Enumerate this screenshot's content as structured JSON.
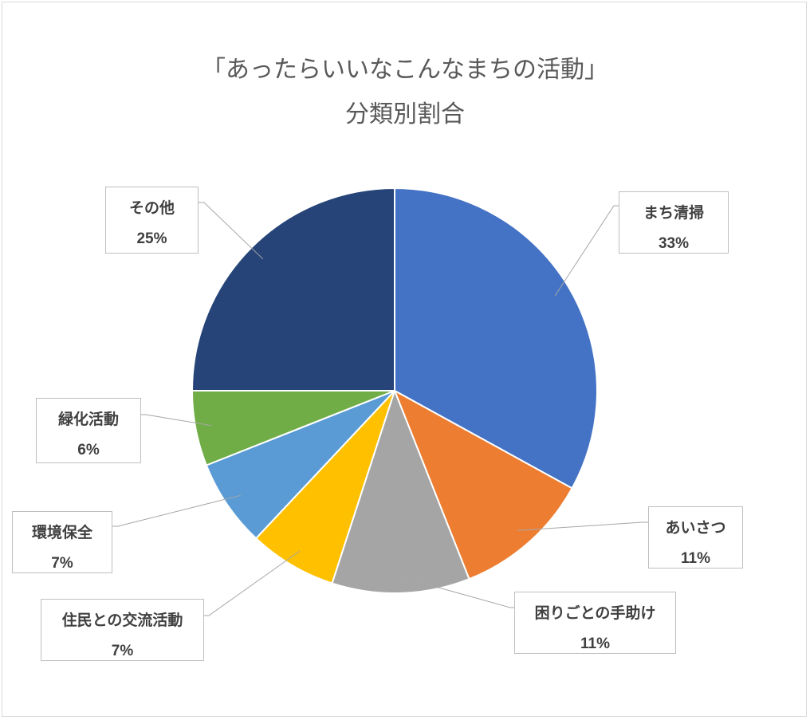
{
  "chart_data": {
    "type": "pie",
    "title_line1": "「あったらいいなこんなまちの活動」",
    "title_line2": "分類別割合",
    "slices": [
      {
        "label": "まち清掃",
        "value": 33,
        "percent_label": "33%",
        "color": "#4472C4"
      },
      {
        "label": "あいさつ",
        "value": 11,
        "percent_label": "11%",
        "color": "#ED7D31"
      },
      {
        "label": "困りごとの手助け",
        "value": 11,
        "percent_label": "11%",
        "color": "#A5A5A5"
      },
      {
        "label": "住民との交流活動",
        "value": 7,
        "percent_label": "7%",
        "color": "#FFC000"
      },
      {
        "label": "環境保全",
        "value": 7,
        "percent_label": "7%",
        "color": "#5B9BD5"
      },
      {
        "label": "緑化活動",
        "value": 6,
        "percent_label": "6%",
        "color": "#70AD47"
      },
      {
        "label": "その他",
        "value": 25,
        "percent_label": "25%",
        "color": "#264478"
      }
    ],
    "legend": "none",
    "start_angle": "12 o'clock",
    "direction": "clockwise"
  }
}
